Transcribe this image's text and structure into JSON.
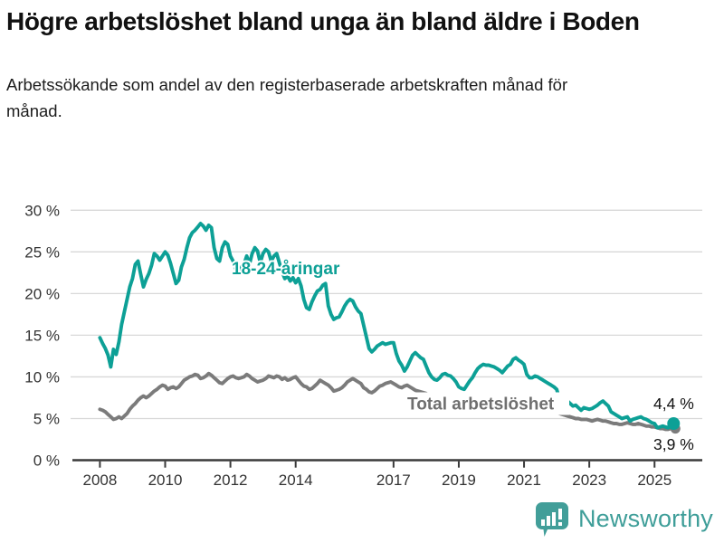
{
  "header": {
    "title": "Högre arbetslöshet bland unga än bland äldre i Boden",
    "subtitle": "Arbetssökande som andel av den registerbaserade arbetskraften månad för månad."
  },
  "chart_data": {
    "type": "line",
    "unit": "%",
    "frequency": "monthly",
    "x_start": "2008-01",
    "x_end": "2025-08",
    "ylim": [
      0,
      30
    ],
    "grid": true,
    "yticks": [
      {
        "value": 0,
        "label": "0 %"
      },
      {
        "value": 5,
        "label": "5 %"
      },
      {
        "value": 10,
        "label": "10 %"
      },
      {
        "value": 15,
        "label": "15 %"
      },
      {
        "value": 20,
        "label": "20 %"
      },
      {
        "value": 25,
        "label": "25 %"
      },
      {
        "value": 30,
        "label": "30 %"
      }
    ],
    "xticks": [
      {
        "year": 2008,
        "label": "2008"
      },
      {
        "year": 2010,
        "label": "2010"
      },
      {
        "year": 2012,
        "label": "2012"
      },
      {
        "year": 2014,
        "label": "2014"
      },
      {
        "year": 2017,
        "label": "2017"
      },
      {
        "year": 2019,
        "label": "2019"
      },
      {
        "year": 2021,
        "label": "2021"
      },
      {
        "year": 2023,
        "label": "2023"
      },
      {
        "year": 2025,
        "label": "2025"
      }
    ],
    "series": [
      {
        "name": "18-24-åringar",
        "color": "#0da096",
        "end_label": "4,4 %",
        "values": [
          14.7,
          14.0,
          13.4,
          12.6,
          11.2,
          13.3,
          12.7,
          14.2,
          16.3,
          17.8,
          19.3,
          20.8,
          21.8,
          23.5,
          23.9,
          22.3,
          20.8,
          21.7,
          22.4,
          23.4,
          24.8,
          24.5,
          24.0,
          24.5,
          25.0,
          24.6,
          23.6,
          22.4,
          21.2,
          21.6,
          23.2,
          24.1,
          25.5,
          26.7,
          27.3,
          27.6,
          28.0,
          28.4,
          28.1,
          27.6,
          28.2,
          27.9,
          25.5,
          24.2,
          23.9,
          25.5,
          26.2,
          25.9,
          24.5,
          23.9,
          22.8,
          22.4,
          23.2,
          23.5,
          24.5,
          23.5,
          24.8,
          25.5,
          25.1,
          23.7,
          24.8,
          25.3,
          25.0,
          23.9,
          24.5,
          24.8,
          23.7,
          22.6,
          21.8,
          22.1,
          21.5,
          21.9,
          21.3,
          21.8,
          20.9,
          19.3,
          18.3,
          18.1,
          19.0,
          19.7,
          20.3,
          20.5,
          21.0,
          21.2,
          18.5,
          17.5,
          16.9,
          17.1,
          17.2,
          17.8,
          18.5,
          19.0,
          19.3,
          19.1,
          18.4,
          17.9,
          17.6,
          16.2,
          14.8,
          13.4,
          13.0,
          13.3,
          13.7,
          13.9,
          14.1,
          13.9,
          14.0,
          14.1,
          14.1,
          12.8,
          11.9,
          11.4,
          10.7,
          11.2,
          11.9,
          12.6,
          12.9,
          12.6,
          12.3,
          12.1,
          11.3,
          10.5,
          10.0,
          9.7,
          9.6,
          9.9,
          10.3,
          10.4,
          10.2,
          10.1,
          9.8,
          9.4,
          8.8,
          8.6,
          8.5,
          9.0,
          9.5,
          9.9,
          10.5,
          11.0,
          11.3,
          11.5,
          11.4,
          11.4,
          11.3,
          11.2,
          11.0,
          10.8,
          10.5,
          10.9,
          11.3,
          11.5,
          12.1,
          12.3,
          12.0,
          11.8,
          11.5,
          10.3,
          9.9,
          9.9,
          10.1,
          10.0,
          9.8,
          9.6,
          9.4,
          9.2,
          9.0,
          8.8,
          8.5,
          7.4,
          7.0,
          6.8,
          7.1,
          6.8,
          6.5,
          6.6,
          6.3,
          6.0,
          6.3,
          6.2,
          6.1,
          6.2,
          6.4,
          6.6,
          6.9,
          7.1,
          6.8,
          6.5,
          5.8,
          5.6,
          5.4,
          5.2,
          5.0,
          5.1,
          5.2,
          4.7,
          4.9,
          5.0,
          5.1,
          5.2,
          5.0,
          4.9,
          4.7,
          4.5,
          4.4,
          3.9,
          4.0,
          4.1,
          4.0,
          3.9,
          4.2,
          4.4
        ]
      },
      {
        "name": "Total arbetslöshet",
        "color": "#7b7b7b",
        "end_label": "3,9 %",
        "values": [
          6.1,
          6.0,
          5.8,
          5.5,
          5.2,
          4.9,
          5.0,
          5.2,
          5.0,
          5.3,
          5.6,
          6.1,
          6.5,
          6.8,
          7.2,
          7.5,
          7.7,
          7.5,
          7.7,
          8.0,
          8.3,
          8.5,
          8.8,
          9.0,
          8.9,
          8.5,
          8.7,
          8.8,
          8.6,
          8.8,
          9.2,
          9.6,
          9.8,
          10.0,
          10.1,
          10.3,
          10.2,
          9.8,
          9.9,
          10.1,
          10.4,
          10.2,
          9.9,
          9.6,
          9.3,
          9.2,
          9.5,
          9.8,
          10.0,
          10.1,
          9.9,
          9.8,
          9.9,
          10.0,
          10.3,
          10.1,
          9.8,
          9.6,
          9.4,
          9.5,
          9.6,
          9.8,
          10.1,
          10.0,
          9.9,
          10.1,
          10.0,
          9.7,
          9.9,
          9.6,
          9.7,
          9.9,
          10.0,
          9.6,
          9.2,
          8.9,
          8.8,
          8.5,
          8.6,
          8.9,
          9.2,
          9.6,
          9.4,
          9.2,
          9.0,
          8.7,
          8.3,
          8.4,
          8.5,
          8.7,
          9.0,
          9.4,
          9.6,
          9.8,
          9.6,
          9.4,
          9.2,
          8.7,
          8.5,
          8.2,
          8.1,
          8.3,
          8.6,
          8.9,
          9.0,
          9.2,
          9.3,
          9.4,
          9.2,
          9.0,
          8.8,
          8.7,
          8.9,
          9.0,
          8.8,
          8.6,
          8.4,
          8.3,
          8.2,
          8.1,
          8.0,
          7.8,
          7.6,
          7.5,
          7.4,
          7.3,
          7.2,
          7.1,
          7.0,
          7.0,
          6.9,
          6.9,
          6.8,
          6.8,
          6.7,
          6.7,
          6.6,
          6.6,
          6.7,
          6.7,
          6.8,
          6.8,
          6.9,
          7.0,
          7.0,
          7.1,
          7.3,
          7.6,
          7.7,
          7.8,
          7.7,
          7.6,
          7.5,
          7.4,
          7.3,
          7.2,
          7.1,
          7.0,
          6.9,
          6.7,
          6.6,
          6.4,
          6.3,
          6.2,
          6.1,
          6.0,
          5.9,
          5.8,
          5.7,
          5.6,
          5.5,
          5.4,
          5.3,
          5.2,
          5.1,
          5.0,
          5.0,
          4.9,
          4.9,
          4.9,
          4.8,
          4.7,
          4.8,
          4.9,
          4.8,
          4.7,
          4.7,
          4.6,
          4.5,
          4.4,
          4.4,
          4.3,
          4.3,
          4.4,
          4.5,
          4.4,
          4.3,
          4.3,
          4.4,
          4.3,
          4.2,
          4.1,
          4.1,
          4.0,
          4.0,
          3.9,
          3.8,
          3.8,
          3.7,
          3.7,
          3.8,
          3.9
        ]
      }
    ]
  },
  "footer": {
    "brand": "Newsworthy"
  }
}
